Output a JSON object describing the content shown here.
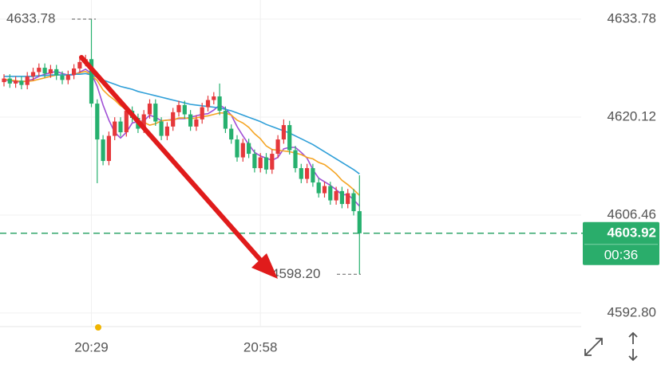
{
  "chart_data": {
    "type": "candlestick",
    "categories": [
      null,
      null,
      null,
      null,
      null,
      null,
      null,
      null,
      null,
      null,
      null,
      null,
      null,
      null,
      null,
      "20:29",
      null,
      null,
      null,
      null,
      null,
      null,
      null,
      null,
      null,
      null,
      null,
      null,
      null,
      null,
      null,
      null,
      null,
      null,
      null,
      null,
      null,
      null,
      null,
      null,
      null,
      null,
      null,
      null,
      "20:58",
      null,
      null,
      null,
      null,
      null,
      null,
      null,
      null,
      null,
      null,
      null,
      null,
      null,
      null,
      null,
      null,
      null
    ],
    "open": [
      4625.0,
      4625.5,
      4624.8,
      4625.2,
      4624.6,
      4625.8,
      4626.4,
      4627.0,
      4626.2,
      4626.8,
      4625.9,
      4625.3,
      4626.0,
      4626.9,
      4627.8,
      4628.2,
      4622.0,
      4617.0,
      4614.0,
      4617.5,
      4619.5,
      4618.0,
      4621.0,
      4620.0,
      4618.5,
      4620.5,
      4622.0,
      4619.5,
      4617.5,
      4618.8,
      4620.8,
      4621.8,
      4620.5,
      4618.8,
      4619.8,
      4621.5,
      4622.5,
      4623.0,
      4621.0,
      4618.5,
      4617.0,
      4614.5,
      4616.5,
      4615.0,
      4613.0,
      4614.5,
      4612.8,
      4615.0,
      4617.0,
      4619.0,
      4615.5,
      4613.0,
      4611.5,
      4613.0,
      4611.0,
      4609.5,
      4610.5,
      4608.5,
      4609.8,
      4608.0,
      4609.5,
      4607.0
    ],
    "high": [
      4626.1,
      4626.1,
      4625.8,
      4625.8,
      4626.4,
      4627.0,
      4627.6,
      4627.6,
      4627.4,
      4627.4,
      4626.5,
      4626.6,
      4627.5,
      4628.4,
      4628.8,
      4633.78,
      4622.6,
      4617.6,
      4618.1,
      4620.1,
      4620.1,
      4621.6,
      4621.6,
      4620.6,
      4621.1,
      4622.6,
      4622.6,
      4620.1,
      4619.4,
      4621.4,
      4622.4,
      4622.4,
      4621.1,
      4620.4,
      4622.1,
      4623.1,
      4623.6,
      4624.8,
      4621.6,
      4619.1,
      4617.6,
      4617.1,
      4617.1,
      4615.6,
      4615.1,
      4615.1,
      4615.6,
      4617.6,
      4619.8,
      4619.6,
      4616.1,
      4613.6,
      4613.6,
      4613.6,
      4611.6,
      4611.1,
      4611.1,
      4610.4,
      4610.4,
      4610.1,
      4610.1,
      4612.0
    ],
    "low": [
      4624.4,
      4624.2,
      4624.2,
      4624.0,
      4624.0,
      4625.2,
      4625.8,
      4625.6,
      4625.6,
      4625.3,
      4624.7,
      4624.7,
      4625.4,
      4626.3,
      4627.2,
      4621.5,
      4610.9,
      4613.4,
      4613.4,
      4616.9,
      4617.4,
      4617.4,
      4619.4,
      4617.9,
      4617.9,
      4619.9,
      4618.9,
      4616.9,
      4616.9,
      4618.2,
      4620.2,
      4619.9,
      4618.2,
      4618.2,
      4619.2,
      4620.9,
      4621.9,
      4620.4,
      4617.9,
      4616.4,
      4613.9,
      4613.9,
      4614.4,
      4612.4,
      4612.4,
      4612.2,
      4612.2,
      4614.4,
      4616.4,
      4614.9,
      4612.4,
      4610.9,
      4610.9,
      4610.4,
      4608.9,
      4608.9,
      4607.9,
      4607.9,
      4607.4,
      4607.4,
      4606.4,
      4598.2
    ],
    "close": [
      4625.5,
      4624.8,
      4625.2,
      4624.6,
      4625.8,
      4626.4,
      4627.0,
      4626.2,
      4626.8,
      4625.9,
      4625.3,
      4626.0,
      4626.9,
      4627.8,
      4628.2,
      4622.0,
      4617.0,
      4614.0,
      4617.5,
      4619.5,
      4618.0,
      4621.0,
      4620.0,
      4618.5,
      4620.5,
      4622.0,
      4619.5,
      4617.5,
      4618.8,
      4620.8,
      4621.8,
      4620.5,
      4618.8,
      4619.8,
      4621.5,
      4622.5,
      4623.0,
      4621.0,
      4618.5,
      4617.0,
      4614.5,
      4616.5,
      4615.0,
      4613.0,
      4614.5,
      4612.8,
      4615.0,
      4617.0,
      4619.0,
      4615.5,
      4613.0,
      4611.5,
      4613.0,
      4611.0,
      4609.5,
      4610.5,
      4608.5,
      4609.8,
      4608.0,
      4609.5,
      4607.0,
      4603.92
    ],
    "up_color": "#e5383b",
    "down_color": "#26b06e",
    "series": [
      {
        "color": "#a04fd6",
        "values": [
          4625.3,
          4625.2,
          4625.1,
          4625.0,
          4625.2,
          4625.4,
          4625.8,
          4626.1,
          4626.3,
          4626.5,
          4626.2,
          4626.0,
          4626.0,
          4626.4,
          4626.8,
          4626.2,
          4624.4,
          4621.8,
          4619.7,
          4618.0,
          4617.2,
          4618.0,
          4619.3,
          4619.5,
          4619.6,
          4620.4,
          4620.1,
          4619.6,
          4619.7,
          4619.8,
          4619.9,
          4619.9,
          4620.1,
          4620.3,
          4620.5,
          4620.6,
          4621.1,
          4621.8,
          4621.3,
          4620.4,
          4618.8,
          4617.5,
          4616.3,
          4615.2,
          4614.7,
          4614.4,
          4614.1,
          4614.5,
          4615.7,
          4615.9,
          4615.9,
          4615.2,
          4614.4,
          4612.8,
          4611.6,
          4611.1,
          4610.6,
          4610.0,
          4609.3,
          4609.3,
          4608.6,
          4607.7
        ]
      },
      {
        "color": "#f5a524",
        "values": [
          4625.4,
          4625.3,
          4625.2,
          4625.1,
          4625.1,
          4625.2,
          4625.4,
          4625.6,
          4625.8,
          4626.0,
          4626.0,
          4626.0,
          4626.1,
          4626.3,
          4626.5,
          4626.0,
          4625.2,
          4623.9,
          4623.1,
          4622.5,
          4621.7,
          4621.2,
          4620.5,
          4619.6,
          4619.4,
          4619.0,
          4619.2,
          4619.6,
          4619.7,
          4619.7,
          4620.0,
          4620.0,
          4619.9,
          4620.0,
          4620.2,
          4620.3,
          4620.5,
          4620.7,
          4620.7,
          4620.4,
          4619.7,
          4619.3,
          4618.7,
          4617.8,
          4617.1,
          4616.1,
          4615.6,
          4615.5,
          4615.4,
          4615.3,
          4615.1,
          4614.9,
          4614.5,
          4614.3,
          4613.8,
          4613.5,
          4612.9,
          4612.2,
          4611.3,
          4610.7,
          4610.0,
          4609.2
        ]
      },
      {
        "color": "#2f9fd8",
        "values": [
          4625.8,
          4625.8,
          4625.8,
          4625.8,
          4625.8,
          4625.8,
          4625.9,
          4625.9,
          4626.0,
          4626.0,
          4626.0,
          4626.0,
          4626.1,
          4626.1,
          4626.2,
          4626.0,
          4625.7,
          4625.3,
          4625.0,
          4624.7,
          4624.4,
          4624.2,
          4624.0,
          4623.7,
          4623.5,
          4623.3,
          4623.1,
          4622.9,
          4622.7,
          4622.5,
          4622.3,
          4622.1,
          4621.9,
          4621.8,
          4621.7,
          4621.6,
          4621.5,
          4621.4,
          4621.2,
          4621.0,
          4620.7,
          4620.4,
          4620.1,
          4619.8,
          4619.5,
          4619.1,
          4618.8,
          4618.5,
          4618.2,
          4617.9,
          4617.5,
          4617.1,
          4616.7,
          4616.3,
          4615.8,
          4615.3,
          4614.8,
          4614.3,
          4613.8,
          4613.3,
          4612.8,
          4612.2
        ]
      }
    ],
    "ylim": [
      4590.9,
      4636.45
    ],
    "yticks": [
      4633.78,
      4620.12,
      4606.46,
      {
        "value": 4592.8,
        "label": "4592.80"
      }
    ],
    "grid": true,
    "max_marker": 4633.78,
    "min_marker": {
      "value": 4598.2,
      "label": "4598.20"
    },
    "last_price": 4603.92,
    "countdown": "00:36"
  }
}
